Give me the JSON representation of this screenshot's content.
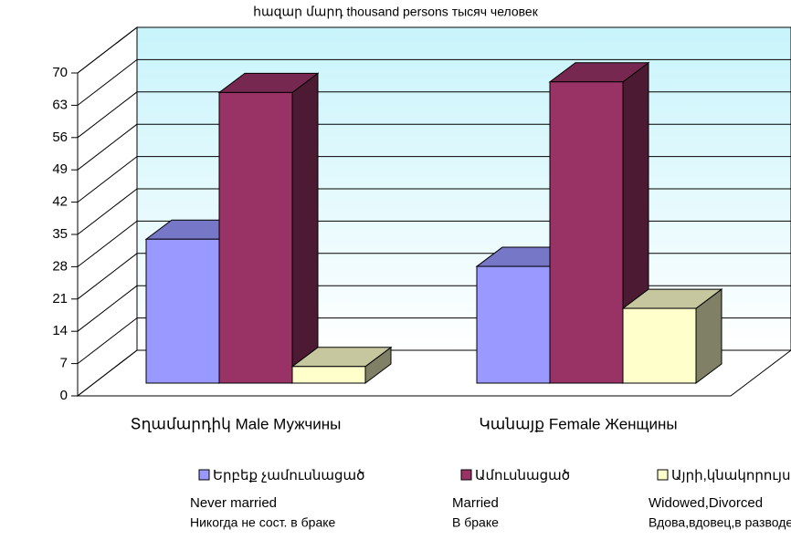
{
  "chart_data": {
    "type": "bar3d",
    "title": "հազար մարդ thousand persons тысяч человек",
    "categories": [
      "Տղամարդիկ Male Мужчины",
      "Կանայք Female Женщины"
    ],
    "series": [
      {
        "name": [
          "Երբեք չամուսնացած",
          "Never married",
          "Никогда не сост. в браке"
        ],
        "color": "#9999ff",
        "values": [
          31.2,
          25.3
        ]
      },
      {
        "name": [
          "Ամուսնացած",
          "Married",
          "В браке"
        ],
        "color": "#993366",
        "values": [
          63,
          65.3
        ]
      },
      {
        "name": [
          "Այրի,կնակորույս,ամուսնալուծված",
          "Widowed,Divorced",
          "Вдова,вдовец,в разводе"
        ],
        "color": "#ffffcc",
        "values": [
          3.6,
          16.2
        ]
      }
    ],
    "ylim": [
      0,
      70
    ],
    "yticks": [
      0,
      7,
      14,
      21,
      28,
      35,
      42,
      49,
      56,
      63,
      70
    ],
    "grid": true,
    "legend": "bottom"
  }
}
